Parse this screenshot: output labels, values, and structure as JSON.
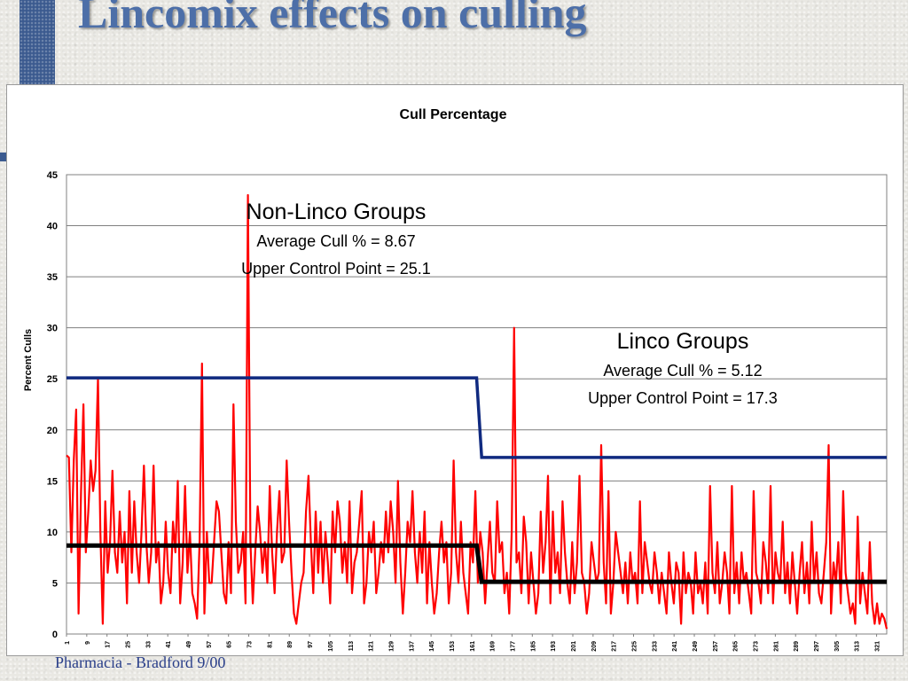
{
  "slide": {
    "title": "Lincomix effects on culling",
    "footer": "Pharmacia - Bradford  9/00"
  },
  "colors": {
    "series": "#ff0000",
    "ucl": "#102a80",
    "average": "#000000",
    "title": "#4d6fa8"
  },
  "chart_data": {
    "type": "line",
    "title": "Cull Percentage",
    "ylabel": "Percent Culls",
    "xlabel": "",
    "ylim": [
      0,
      45
    ],
    "yticks": [
      0,
      5,
      10,
      15,
      20,
      25,
      30,
      35,
      40,
      45
    ],
    "xlim": [
      1,
      325
    ],
    "xticks": [
      1,
      9,
      17,
      25,
      33,
      41,
      49,
      57,
      65,
      73,
      81,
      89,
      97,
      105,
      113,
      121,
      129,
      137,
      145,
      153,
      161,
      169,
      177,
      185,
      193,
      201,
      209,
      217,
      225,
      233,
      241,
      249,
      257,
      265,
      273,
      281,
      289,
      297,
      305,
      313,
      321
    ],
    "grid": true,
    "series": [
      {
        "name": "Cull %",
        "values": [
          17.5,
          17.3,
          8,
          17,
          22,
          2,
          14,
          22.5,
          8,
          12,
          17,
          14,
          16,
          25,
          10,
          1,
          13,
          6,
          9,
          16,
          8,
          6,
          12,
          7,
          10,
          3,
          14,
          6,
          13,
          8,
          5,
          10,
          16.5,
          9,
          5,
          8,
          16.5,
          7,
          9,
          3,
          5,
          11,
          6,
          4,
          11,
          8,
          15,
          3,
          7,
          14.5,
          6,
          10,
          4,
          3,
          1.5,
          9,
          26.5,
          2,
          10,
          5,
          5,
          9,
          13,
          12,
          8,
          4,
          3,
          9,
          4,
          22.5,
          11,
          6,
          7,
          10,
          3,
          43,
          9,
          3,
          8,
          12.5,
          10,
          6,
          9,
          5,
          14.5,
          8,
          4,
          10,
          14,
          7,
          8,
          17,
          11,
          6,
          2,
          1,
          3,
          5,
          6,
          12,
          15.5,
          9,
          4,
          12,
          6,
          11,
          5,
          10,
          7,
          3,
          12,
          8,
          13,
          11,
          6,
          9,
          5,
          13,
          4,
          7,
          8,
          11,
          14,
          3,
          5,
          10,
          8,
          11,
          4,
          6,
          9,
          7,
          12,
          8,
          13,
          10,
          5,
          15,
          7,
          2,
          6,
          11,
          9,
          14,
          8,
          5,
          10,
          6,
          12,
          3,
          9,
          5,
          2,
          4,
          8,
          11,
          7,
          9,
          3,
          6,
          17,
          8,
          5,
          11,
          6,
          4,
          2,
          9,
          7,
          14,
          5,
          10,
          8,
          3,
          7,
          11,
          6,
          5,
          13,
          8,
          9,
          4,
          6,
          2,
          10,
          30,
          7,
          8,
          4,
          11.5,
          9,
          3,
          8,
          5,
          2,
          4,
          12,
          6,
          9,
          15.5,
          3,
          12,
          6,
          8,
          4,
          13,
          8,
          5,
          3,
          9,
          4,
          7,
          15.5,
          6,
          5,
          2,
          4,
          9,
          7,
          5,
          6,
          18.5,
          7,
          3,
          14,
          2,
          5,
          10,
          8,
          6,
          4,
          7,
          3,
          8,
          5,
          6,
          3,
          13,
          4,
          9,
          7,
          5,
          4,
          8,
          6,
          3,
          6,
          4,
          2,
          8,
          5,
          3,
          7,
          6,
          1,
          8,
          4,
          6,
          5,
          2,
          8,
          4,
          5,
          3,
          7,
          2,
          14.5,
          6,
          4,
          9,
          3,
          5,
          8,
          6,
          2,
          14.5,
          4,
          7,
          3,
          8,
          5,
          6,
          4,
          2,
          14,
          6,
          5,
          3,
          9,
          7,
          4,
          14.5,
          3,
          8,
          6,
          5,
          11,
          4,
          7,
          3,
          8,
          5,
          2,
          6,
          9,
          4,
          7,
          3,
          11,
          5,
          8,
          4,
          3,
          6,
          9,
          18.5,
          2,
          7,
          5,
          9,
          3,
          14,
          6,
          4,
          2,
          3,
          1,
          11.5,
          3,
          6,
          4,
          2,
          9,
          3,
          1,
          3,
          1,
          2,
          1.5,
          0.5
        ]
      },
      {
        "name": "Upper Control Point",
        "segments": [
          {
            "x_start": 1,
            "x_end": 163,
            "value": 25.1
          },
          {
            "x_start": 165,
            "x_end": 325,
            "value": 17.3
          }
        ]
      },
      {
        "name": "Average Cull %",
        "segments": [
          {
            "x_start": 1,
            "x_end": 163,
            "value": 8.67
          },
          {
            "x_start": 165,
            "x_end": 325,
            "value": 5.12
          }
        ]
      }
    ],
    "annotations": [
      {
        "heading": "Non-Linco Groups",
        "line1": "Average Cull % = 8.67",
        "line2": "Upper Control Point = 25.1"
      },
      {
        "heading": "Linco Groups",
        "line1": "Average Cull % = 5.12",
        "line2": "Upper Control Point = 17.3"
      }
    ]
  }
}
